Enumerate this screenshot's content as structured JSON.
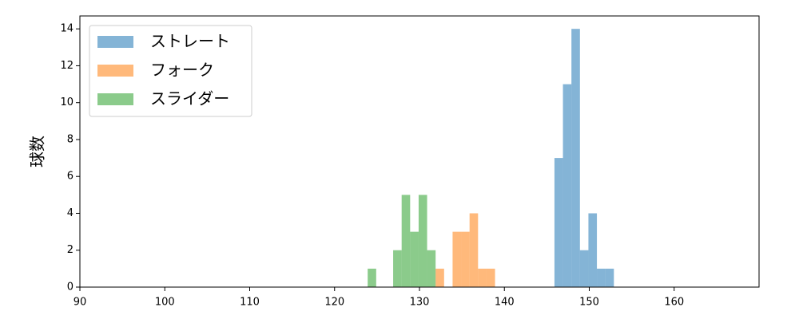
{
  "chart_data": {
    "type": "histogram",
    "ylabel": "球数",
    "xlim": [
      90,
      170
    ],
    "xticks": [
      90,
      100,
      110,
      120,
      130,
      140,
      150,
      160
    ],
    "ylim": [
      0,
      14.7
    ],
    "yticks": [
      0,
      2,
      4,
      6,
      8,
      10,
      12,
      14
    ],
    "legend": "upper left",
    "opacity": 0.55,
    "series": [
      {
        "name": "ストレート",
        "color": "#1f77b4",
        "bins": [
          145.9,
          146.9,
          147.9,
          148.9,
          149.9,
          150.9,
          151.9,
          152.9
        ],
        "values": [
          7,
          11,
          14,
          2,
          4,
          1,
          1
        ]
      },
      {
        "name": "フォーク",
        "color": "#ff7f0e",
        "bins": [
          131.9,
          132.9,
          133.9,
          134.9,
          135.9,
          136.9,
          137.9,
          138.9
        ],
        "values": [
          1,
          0,
          3,
          3,
          4,
          1,
          1
        ]
      },
      {
        "name": "スライダー",
        "color": "#2ca02c",
        "bins": [
          123.9,
          124.9,
          125.9,
          126.9,
          127.9,
          128.9,
          129.9,
          130.9,
          131.9
        ],
        "values": [
          1,
          0,
          0,
          2,
          5,
          3,
          5,
          2
        ]
      }
    ]
  }
}
